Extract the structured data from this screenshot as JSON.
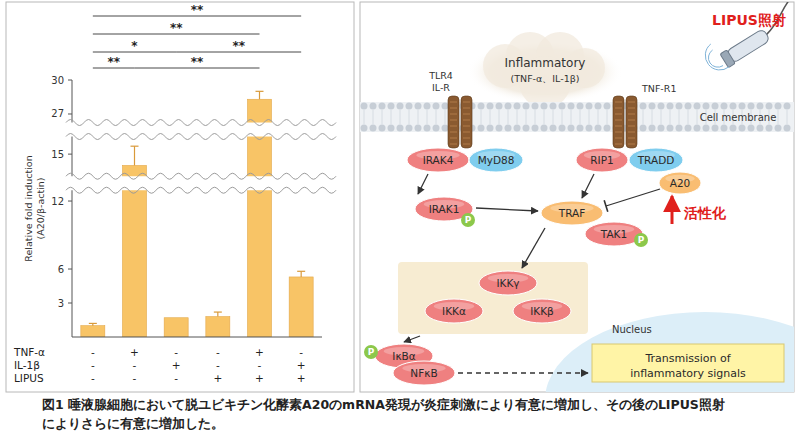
{
  "chart_data": {
    "type": "bar",
    "y_label": [
      "Relative fold induction",
      "(A20/β-actin)"
    ],
    "categories": [
      null,
      null,
      null,
      null,
      null,
      null
    ],
    "values": [
      1.0,
      14.0,
      1.7,
      1.8,
      28.3,
      5.3
    ],
    "errors": [
      0.2,
      1.7,
      null,
      0.4,
      0.7,
      0.5
    ],
    "color": "#f8c466",
    "ylim": [
      0,
      30
    ],
    "yticks": [
      3,
      6,
      12,
      15,
      27,
      30
    ],
    "y_breaks": [
      [
        12.6,
        13.4
      ],
      [
        16.2,
        26.6
      ]
    ],
    "grid": false,
    "conditions": {
      "rows": [
        "TNF-α",
        "IL-1β",
        "LIPUS"
      ],
      "signs": [
        [
          "-",
          "+",
          "-",
          "-",
          "+",
          "-"
        ],
        [
          "-",
          "-",
          "+",
          "-",
          "-",
          "+"
        ],
        [
          "-",
          "-",
          "-",
          "+",
          "+",
          "+"
        ]
      ]
    },
    "significance": [
      {
        "from": 0,
        "to": 5,
        "label": "**"
      },
      {
        "from": 0,
        "to": 4,
        "label": "**"
      },
      {
        "from": 0,
        "to": 2,
        "label": "*"
      },
      {
        "from": 2,
        "to": 5,
        "label": "**"
      },
      {
        "from": 0,
        "to": 1,
        "label": "**"
      },
      {
        "from": 1,
        "to": 4,
        "label": "**"
      }
    ]
  },
  "diagram": {
    "lipus_label": "LIPUS照射",
    "stimulus": [
      "Inflammatory",
      "(TNF-α、IL-1β)"
    ],
    "receptors": [
      [
        "TLR4",
        "IL-R"
      ],
      [
        "TNF-R1"
      ]
    ],
    "membrane_label": "Cell membrane",
    "nodes": [
      {
        "label": "IRAK4",
        "color": "#ef8080"
      },
      {
        "label": "MyD88",
        "color": "#7fcdee"
      },
      {
        "label": "RIP1",
        "color": "#ef8080"
      },
      {
        "label": "TRADD",
        "color": "#7fcdee"
      },
      {
        "label": "A20",
        "color": "#f9bd72"
      },
      {
        "label": "IRAK1",
        "color": "#ef8080",
        "phospho": "P"
      },
      {
        "label": "TRAF",
        "color": "#f9bd72"
      },
      {
        "label": "TAK1",
        "color": "#ef8080",
        "phospho": "P"
      },
      {
        "label": "IKKγ",
        "color": "#ef8080"
      },
      {
        "label": "IKKα",
        "color": "#ef8080"
      },
      {
        "label": "IKKβ",
        "color": "#ef8080"
      },
      {
        "label": "IκBα",
        "color": "#ef8080",
        "phospho": "P"
      },
      {
        "label": "NFκB",
        "color": "#ef8080"
      }
    ],
    "activation_label": "活性化",
    "nucleus_label": "Nucleus",
    "nucleus_box": [
      "Transmission of",
      "inflammatory signals"
    ]
  },
  "caption": [
    "図1 唾液腺細胞において脱ユビキチン化酵素A20のmRNA発現が炎症刺激により有意に増加し、その後のLIPUS照射",
    "によりさらに有意に増加した。"
  ]
}
